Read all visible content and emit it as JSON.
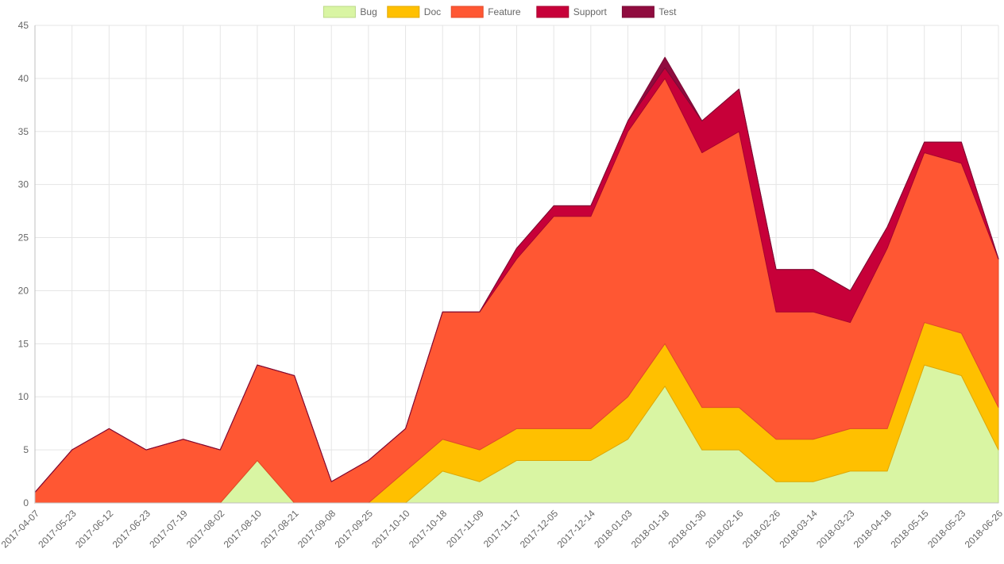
{
  "chart_data": {
    "type": "area",
    "stacked": true,
    "title": "",
    "xlabel": "",
    "ylabel": "",
    "ylim": [
      0,
      45
    ],
    "y_ticks": [
      0,
      5,
      10,
      15,
      20,
      25,
      30,
      35,
      40,
      45
    ],
    "grid": true,
    "legend_position": "top",
    "x": [
      "2017-04-07",
      "2017-05-23",
      "2017-06-12",
      "2017-06-23",
      "2017-07-19",
      "2017-08-02",
      "2017-08-10",
      "2017-08-21",
      "2017-09-08",
      "2017-09-25",
      "2017-10-10",
      "2017-10-18",
      "2017-11-09",
      "2017-11-17",
      "2017-12-05",
      "2017-12-14",
      "2018-01-03",
      "2018-01-18",
      "2018-01-30",
      "2018-02-16",
      "2018-02-26",
      "2018-03-14",
      "2018-03-23",
      "2018-04-18",
      "2018-05-15",
      "2018-05-23",
      "2018-06-26"
    ],
    "series": [
      {
        "name": "Bug",
        "color": "#d9f5a3",
        "stroke": "#bcd98a",
        "values": [
          0,
          0,
          0,
          0,
          0,
          0,
          4,
          0,
          0,
          0,
          0,
          3,
          2,
          4,
          4,
          4,
          6,
          11,
          5,
          5,
          2,
          2,
          3,
          3,
          13,
          12,
          5
        ]
      },
      {
        "name": "Doc",
        "color": "#ffc000",
        "stroke": "#e0a800",
        "values": [
          0,
          0,
          0,
          0,
          0,
          0,
          0,
          0,
          0,
          0,
          3,
          3,
          3,
          3,
          3,
          3,
          4,
          4,
          4,
          4,
          4,
          4,
          4,
          4,
          4,
          4,
          4
        ]
      },
      {
        "name": "Feature",
        "color": "#ff5733",
        "stroke": "#e04a2a",
        "values": [
          1,
          5,
          7,
          5,
          6,
          5,
          9,
          12,
          2,
          4,
          4,
          12,
          13,
          16,
          20,
          20,
          25,
          25,
          24,
          26,
          12,
          12,
          10,
          17,
          16,
          16,
          14
        ]
      },
      {
        "name": "Support",
        "color": "#c70039",
        "stroke": "#a8002f",
        "values": [
          0,
          0,
          0,
          0,
          0,
          0,
          0,
          0,
          0,
          0,
          0,
          0,
          0,
          1,
          1,
          1,
          1,
          1,
          3,
          4,
          4,
          4,
          3,
          2,
          1,
          2,
          0
        ]
      },
      {
        "name": "Test",
        "color": "#900c3f",
        "stroke": "#7a0a35",
        "values": [
          0,
          0,
          0,
          0,
          0,
          0,
          0,
          0,
          0,
          0,
          0,
          0,
          0,
          0,
          0,
          0,
          0,
          1,
          0,
          0,
          0,
          0,
          0,
          0,
          0,
          0,
          0
        ]
      }
    ]
  }
}
